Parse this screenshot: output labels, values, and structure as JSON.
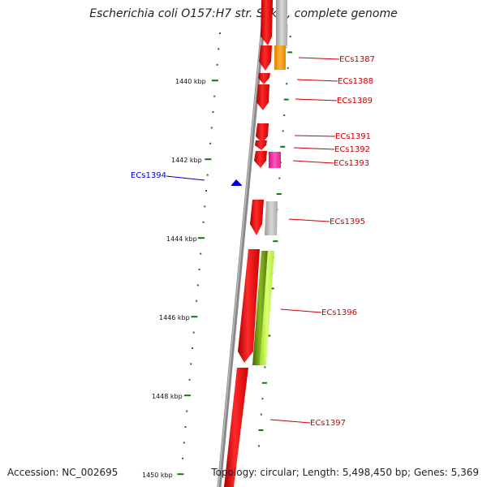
{
  "title": "Escherichia coli O157:H7 str. Sakai, complete genome",
  "footer": {
    "accession": "Accession: NC_002695",
    "topology": "Topology: circular; Length: 5,498,450 bp; Genes: 5,369"
  },
  "colors": {
    "forward_gene": "#ff0000",
    "reverse_gene_grey": "#aaaaaa",
    "orange_gene": "#ff9900",
    "pink_gene": "#ff33aa",
    "green_gene": "#66aa11",
    "lime_gene": "#bbff44",
    "blue_feature": "#0000dd",
    "backbone": "#888888",
    "tick": "#117711",
    "label_red": "#cc0000",
    "label_blue": "#0000cc"
  },
  "kbp_labels": [
    "1440 kbp",
    "1442 kbp",
    "1444 kbp",
    "1446 kbp",
    "1448 kbp",
    "1450 kbp"
  ],
  "gene_labels": [
    "ECs1387",
    "ECs1388",
    "ECs1389",
    "ECs1391",
    "ECs1392",
    "ECs1393",
    "ECs1394",
    "ECs1395",
    "ECs1396",
    "ECs1397"
  ]
}
